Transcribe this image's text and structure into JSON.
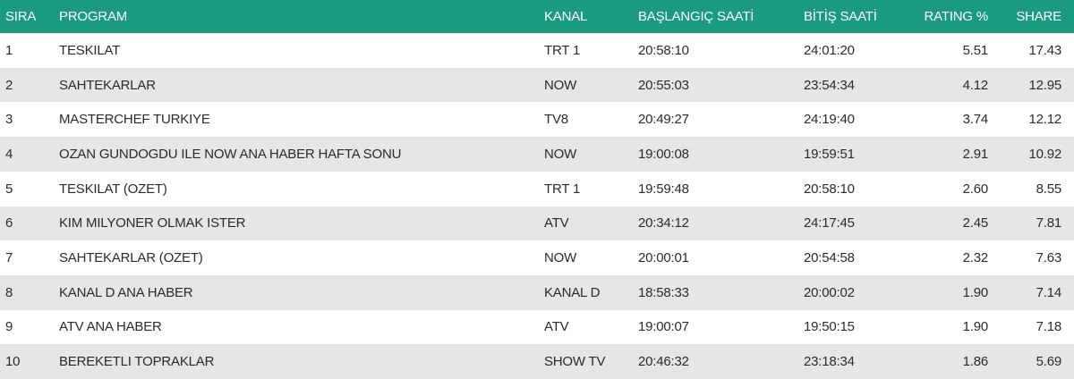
{
  "table": {
    "headers": [
      "SIRA",
      "PROGRAM",
      "KANAL",
      "BAŞLANGIÇ SAATİ",
      "BİTİŞ SAATİ",
      "RATING %",
      "SHARE"
    ],
    "rows": [
      [
        "1",
        "TESKILAT",
        "TRT 1",
        "20:58:10",
        "24:01:20",
        "5.51",
        "17.43"
      ],
      [
        "2",
        "SAHTEKARLAR",
        "NOW",
        "20:55:03",
        "23:54:34",
        "4.12",
        "12.95"
      ],
      [
        "3",
        "MASTERCHEF TURKIYE",
        "TV8",
        "20:49:27",
        "24:19:40",
        "3.74",
        "12.12"
      ],
      [
        "4",
        "OZAN GUNDOGDU ILE NOW ANA HABER HAFTA SONU",
        "NOW",
        "19:00:08",
        "19:59:51",
        "2.91",
        "10.92"
      ],
      [
        "5",
        "TESKILAT (OZET)",
        "TRT 1",
        "19:59:48",
        "20:58:10",
        "2.60",
        "8.55"
      ],
      [
        "6",
        "KIM MILYONER OLMAK ISTER",
        "ATV",
        "20:34:12",
        "24:17:45",
        "2.45",
        "7.81"
      ],
      [
        "7",
        "SAHTEKARLAR (OZET)",
        "NOW",
        "20:00:01",
        "20:54:58",
        "2.32",
        "7.63"
      ],
      [
        "8",
        "KANAL D ANA HABER",
        "KANAL D",
        "18:58:33",
        "20:00:02",
        "1.90",
        "7.14"
      ],
      [
        "9",
        "ATV ANA HABER",
        "ATV",
        "19:00:07",
        "19:50:15",
        "1.90",
        "7.18"
      ],
      [
        "10",
        "BEREKETLI TOPRAKLAR",
        "SHOW TV",
        "20:46:32",
        "23:18:34",
        "1.86",
        "5.69"
      ]
    ]
  }
}
